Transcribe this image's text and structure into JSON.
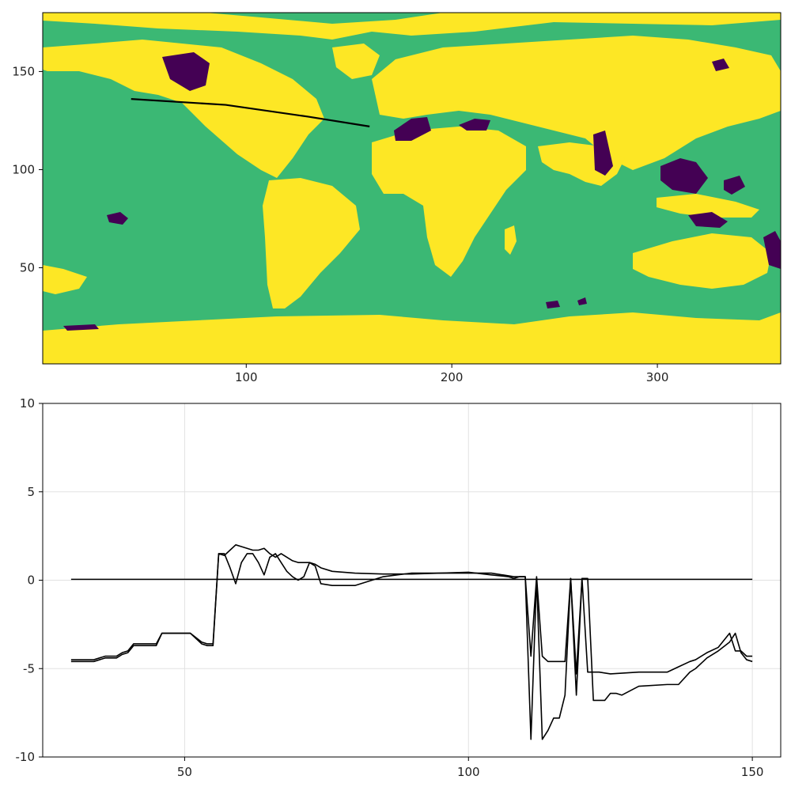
{
  "chart_data": [
    {
      "type": "heatmap",
      "title": "",
      "xlabel": "",
      "ylabel": "",
      "xlim": [
        1,
        360
      ],
      "ylim": [
        1,
        180
      ],
      "x_ticks": [
        100,
        200,
        300
      ],
      "y_ticks": [
        50,
        100,
        150
      ],
      "grid": false,
      "legend": "none",
      "categories": [
        "lake",
        "ocean",
        "land"
      ],
      "category_colors": [
        "#440154",
        "#3bb874",
        "#fde725"
      ],
      "transect": {
        "points": [
          [
            44,
            136
          ],
          [
            90,
            133
          ],
          [
            130,
            127
          ],
          [
            160,
            122
          ]
        ],
        "color": "#000000"
      }
    },
    {
      "type": "line",
      "title": "",
      "xlabel": "",
      "ylabel": "",
      "xlim": [
        25,
        155
      ],
      "ylim": [
        -10,
        10
      ],
      "x_ticks": [
        50,
        100,
        150
      ],
      "y_ticks": [
        -10,
        -5,
        0,
        5,
        10
      ],
      "grid": true,
      "legend": "none",
      "series": [
        {
          "color": "#000000",
          "x": [
            30,
            34,
            36,
            38,
            39,
            40,
            41,
            44,
            45,
            46,
            48,
            50,
            51,
            53,
            54,
            55,
            56,
            57,
            58,
            59,
            60,
            61,
            62,
            63,
            64,
            65,
            66,
            67,
            68,
            69,
            70,
            71,
            72,
            73,
            74,
            76,
            80,
            85,
            90,
            95,
            100,
            104,
            108,
            109,
            110,
            111,
            112,
            113,
            114,
            115,
            116,
            117,
            118,
            119,
            120,
            121,
            122,
            123,
            125,
            130,
            135,
            137,
            139,
            140,
            142,
            144,
            146,
            147,
            148,
            149,
            150
          ],
          "y": [
            -4.5,
            -4.5,
            -4.3,
            -4.3,
            -4.1,
            -4.0,
            -3.6,
            -3.6,
            -3.6,
            -3.0,
            -3.0,
            -3.0,
            -3.0,
            -3.5,
            -3.6,
            -3.6,
            1.5,
            1.5,
            0.7,
            -0.2,
            1.0,
            1.5,
            1.5,
            1.0,
            0.3,
            1.3,
            1.5,
            1.0,
            0.5,
            0.2,
            0.0,
            0.2,
            1.0,
            0.8,
            -0.2,
            -0.3,
            -0.3,
            0.2,
            0.4,
            0.4,
            0.4,
            0.4,
            0.2,
            0.2,
            0.2,
            -4.3,
            0.2,
            -4.3,
            -4.6,
            -4.6,
            -4.6,
            -4.6,
            0.1,
            -5.3,
            0.1,
            -5.2,
            -5.2,
            -5.2,
            -5.3,
            -5.2,
            -5.2,
            -4.9,
            -4.6,
            -4.5,
            -4.1,
            -3.8,
            -3.0,
            -4.0,
            -4.0,
            -4.3,
            -4.3
          ]
        },
        {
          "color": "#000000",
          "x": [
            30,
            34,
            36,
            38,
            39,
            40,
            41,
            44,
            45,
            46,
            48,
            50,
            51,
            53,
            54,
            55,
            56,
            57,
            58,
            59,
            60,
            61,
            62,
            63,
            64,
            65,
            66,
            67,
            68,
            69,
            70,
            71,
            72,
            73,
            74,
            76,
            80,
            85,
            90,
            95,
            100,
            104,
            107,
            108,
            109,
            110,
            111,
            112,
            113,
            114,
            115,
            116,
            117,
            118,
            119,
            120,
            121,
            122,
            123,
            124,
            125,
            126,
            127,
            130,
            135,
            137,
            139,
            140,
            142,
            144,
            146,
            147,
            148,
            149,
            150
          ],
          "y": [
            -4.6,
            -4.6,
            -4.4,
            -4.4,
            -4.2,
            -4.1,
            -3.7,
            -3.7,
            -3.7,
            -3.0,
            -3.0,
            -3.0,
            -3.0,
            -3.6,
            -3.7,
            -3.7,
            1.5,
            1.4,
            1.7,
            2.0,
            1.9,
            1.8,
            1.7,
            1.7,
            1.8,
            1.5,
            1.3,
            1.5,
            1.3,
            1.1,
            1.0,
            1.0,
            1.0,
            0.9,
            0.7,
            0.5,
            0.4,
            0.35,
            0.35,
            0.4,
            0.45,
            0.3,
            0.2,
            0.1,
            0.2,
            0.2,
            -9.0,
            0.1,
            -9.0,
            -8.5,
            -7.8,
            -7.8,
            -6.5,
            0.1,
            -6.5,
            0.1,
            0.1,
            -6.8,
            -6.8,
            -6.8,
            -6.4,
            -6.4,
            -6.5,
            -6.0,
            -5.9,
            -5.9,
            -5.2,
            -5.0,
            -4.4,
            -4.0,
            -3.5,
            -3.0,
            -4.1,
            -4.5,
            -4.6
          ]
        },
        {
          "color": "#000000",
          "x": [
            30,
            150
          ],
          "y": [
            0.05,
            0.05
          ]
        }
      ]
    }
  ]
}
